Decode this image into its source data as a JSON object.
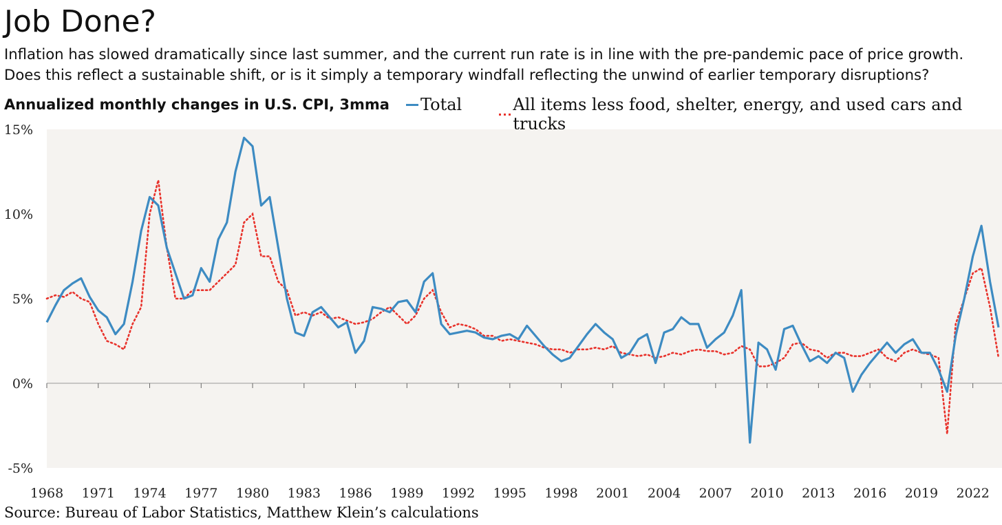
{
  "header": {
    "title": "Job Done?",
    "subtitle": "Inflation has slowed dramatically since last summer, and the current run rate is in line with the pre-pandemic pace of price growth. Does this reflect a sustainable shift, or is it simply a temporary windfall reflecting the unwind of earlier temporary disruptions?"
  },
  "footer": {
    "source": "Source: Bureau of Labor Statistics, Matthew Klein’s calculations"
  },
  "colors": {
    "total": "#3d8bc2",
    "core": "#e8322b",
    "plot_bg": "#f5f3f0",
    "zero_line": "#999999"
  },
  "chart_data": {
    "type": "line",
    "title": "Annualized monthly changes in U.S. CPI, 3mma",
    "ylim": [
      -5,
      15
    ],
    "xlim": [
      1968,
      2023.7
    ],
    "yticks": [
      -5,
      0,
      5,
      10,
      15
    ],
    "ytick_labels": [
      "-5%",
      "0%",
      "5%",
      "10%",
      "15%"
    ],
    "xticks": [
      1968,
      1971,
      1974,
      1977,
      1980,
      1983,
      1986,
      1989,
      1992,
      1995,
      1998,
      2001,
      2004,
      2007,
      2010,
      2013,
      2016,
      2019,
      2022
    ],
    "xtick_labels": [
      "1968",
      "1971",
      "1974",
      "1977",
      "1980",
      "1983",
      "1986",
      "1989",
      "1992",
      "1995",
      "1998",
      "2001",
      "2004",
      "2007",
      "2010",
      "2013",
      "2016",
      "2019",
      "2022"
    ],
    "grid": false,
    "legend": "top",
    "series": [
      {
        "name": "Total",
        "style": "solid",
        "x": [
          1968.0,
          1968.5,
          1969.0,
          1969.5,
          1970.0,
          1970.5,
          1971.0,
          1971.5,
          1972.0,
          1972.5,
          1973.0,
          1973.5,
          1974.0,
          1974.5,
          1975.0,
          1975.5,
          1976.0,
          1976.5,
          1977.0,
          1977.5,
          1978.0,
          1978.5,
          1979.0,
          1979.5,
          1980.0,
          1980.5,
          1981.0,
          1981.5,
          1982.0,
          1982.5,
          1983.0,
          1983.5,
          1984.0,
          1984.5,
          1985.0,
          1985.5,
          1986.0,
          1986.5,
          1987.0,
          1987.5,
          1988.0,
          1988.5,
          1989.0,
          1989.5,
          1990.0,
          1990.5,
          1991.0,
          1991.5,
          1992.0,
          1992.5,
          1993.0,
          1993.5,
          1994.0,
          1994.5,
          1995.0,
          1995.5,
          1996.0,
          1996.5,
          1997.0,
          1997.5,
          1998.0,
          1998.5,
          1999.0,
          1999.5,
          2000.0,
          2000.5,
          2001.0,
          2001.5,
          2002.0,
          2002.5,
          2003.0,
          2003.5,
          2004.0,
          2004.5,
          2005.0,
          2005.5,
          2006.0,
          2006.5,
          2007.0,
          2007.5,
          2008.0,
          2008.5,
          2009.0,
          2009.5,
          2010.0,
          2010.5,
          2011.0,
          2011.5,
          2012.0,
          2012.5,
          2013.0,
          2013.5,
          2014.0,
          2014.5,
          2015.0,
          2015.5,
          2016.0,
          2016.5,
          2017.0,
          2017.5,
          2018.0,
          2018.5,
          2019.0,
          2019.5,
          2020.0,
          2020.5,
          2021.0,
          2021.5,
          2022.0,
          2022.5,
          2023.0,
          2023.5
        ],
        "y": [
          3.6,
          4.6,
          5.5,
          5.9,
          6.2,
          5.1,
          4.3,
          3.9,
          2.9,
          3.5,
          6.0,
          9.0,
          11.0,
          10.5,
          8.0,
          6.5,
          5.0,
          5.2,
          6.8,
          6.0,
          8.5,
          9.5,
          12.5,
          14.5,
          14.0,
          10.5,
          11.0,
          8.0,
          5.0,
          3.0,
          2.8,
          4.2,
          4.5,
          3.9,
          3.3,
          3.6,
          1.8,
          2.5,
          4.5,
          4.4,
          4.2,
          4.8,
          4.9,
          4.2,
          6.0,
          6.5,
          3.5,
          2.9,
          3.0,
          3.1,
          3.0,
          2.7,
          2.6,
          2.8,
          2.9,
          2.6,
          3.4,
          2.8,
          2.2,
          1.7,
          1.3,
          1.5,
          2.2,
          2.9,
          3.5,
          3.0,
          2.6,
          1.5,
          1.8,
          2.6,
          2.9,
          1.2,
          3.0,
          3.2,
          3.9,
          3.5,
          3.5,
          2.1,
          2.6,
          3.0,
          4.0,
          5.5,
          -3.5,
          2.4,
          2.0,
          0.8,
          3.2,
          3.4,
          2.3,
          1.3,
          1.6,
          1.2,
          1.8,
          1.5,
          -0.5,
          0.5,
          1.2,
          1.8,
          2.4,
          1.8,
          2.3,
          2.6,
          1.8,
          1.8,
          0.8,
          -0.5,
          2.8,
          5.0,
          7.5,
          9.3,
          6.0,
          3.3
        ]
      },
      {
        "name": "All items less food, shelter, energy, and used cars and trucks",
        "style": "dotted",
        "x": [
          1968.0,
          1968.5,
          1969.0,
          1969.5,
          1970.0,
          1970.5,
          1971.0,
          1971.5,
          1972.0,
          1972.5,
          1973.0,
          1973.5,
          1974.0,
          1974.5,
          1975.0,
          1975.5,
          1976.0,
          1976.5,
          1977.0,
          1977.5,
          1978.0,
          1978.5,
          1979.0,
          1979.5,
          1980.0,
          1980.5,
          1981.0,
          1981.5,
          1982.0,
          1982.5,
          1983.0,
          1983.5,
          1984.0,
          1984.5,
          1985.0,
          1985.5,
          1986.0,
          1986.5,
          1987.0,
          1987.5,
          1988.0,
          1988.5,
          1989.0,
          1989.5,
          1990.0,
          1990.5,
          1991.0,
          1991.5,
          1992.0,
          1992.5,
          1993.0,
          1993.5,
          1994.0,
          1994.5,
          1995.0,
          1995.5,
          1996.0,
          1996.5,
          1997.0,
          1997.5,
          1998.0,
          1998.5,
          1999.0,
          1999.5,
          2000.0,
          2000.5,
          2001.0,
          2001.5,
          2002.0,
          2002.5,
          2003.0,
          2003.5,
          2004.0,
          2004.5,
          2005.0,
          2005.5,
          2006.0,
          2006.5,
          2007.0,
          2007.5,
          2008.0,
          2008.5,
          2009.0,
          2009.5,
          2010.0,
          2010.5,
          2011.0,
          2011.5,
          2012.0,
          2012.5,
          2013.0,
          2013.5,
          2014.0,
          2014.5,
          2015.0,
          2015.5,
          2016.0,
          2016.5,
          2017.0,
          2017.5,
          2018.0,
          2018.5,
          2019.0,
          2019.5,
          2020.0,
          2020.5,
          2021.0,
          2021.5,
          2022.0,
          2022.5,
          2023.0,
          2023.5
        ],
        "y": [
          5.0,
          5.2,
          5.1,
          5.4,
          5.0,
          4.8,
          3.5,
          2.5,
          2.3,
          2.0,
          3.5,
          4.5,
          10.0,
          12.0,
          8.0,
          5.0,
          5.0,
          5.5,
          5.5,
          5.5,
          6.0,
          6.5,
          7.0,
          9.5,
          10.0,
          7.5,
          7.5,
          6.0,
          5.5,
          4.0,
          4.2,
          4.0,
          4.2,
          3.8,
          3.9,
          3.7,
          3.5,
          3.6,
          3.8,
          4.2,
          4.5,
          4.0,
          3.5,
          4.0,
          5.0,
          5.5,
          4.2,
          3.3,
          3.5,
          3.4,
          3.2,
          2.8,
          2.8,
          2.5,
          2.6,
          2.5,
          2.4,
          2.3,
          2.1,
          2.0,
          2.0,
          1.8,
          2.0,
          2.0,
          2.1,
          2.0,
          2.2,
          1.8,
          1.7,
          1.6,
          1.7,
          1.5,
          1.6,
          1.8,
          1.7,
          1.9,
          2.0,
          1.9,
          1.9,
          1.7,
          1.8,
          2.2,
          2.0,
          1.0,
          1.0,
          1.2,
          1.5,
          2.3,
          2.4,
          2.0,
          1.9,
          1.5,
          1.8,
          1.8,
          1.6,
          1.6,
          1.8,
          2.0,
          1.5,
          1.3,
          1.8,
          2.0,
          1.8,
          1.7,
          1.5,
          -3.0,
          3.5,
          5.0,
          6.5,
          6.8,
          4.5,
          1.5
        ]
      }
    ]
  }
}
